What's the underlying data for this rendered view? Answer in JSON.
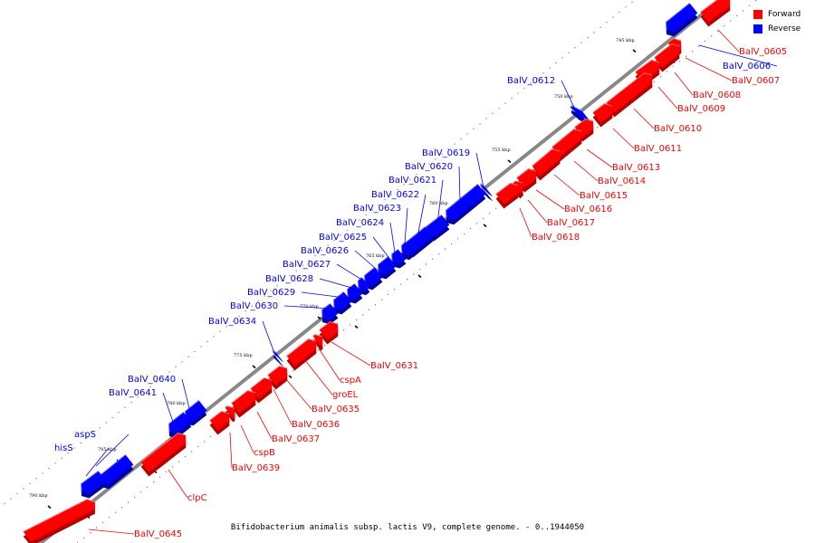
{
  "caption": "Bifidobacterium animalis subsp. lactis V9, complete genome. - 0..1944050",
  "legend": [
    {
      "label": "Forward",
      "color": "#ff0000"
    },
    {
      "label": "Reverse",
      "color": "#0000ff"
    }
  ],
  "colors": {
    "forward": "#ff0000",
    "reverse": "#0000ff",
    "backbone": "#888888"
  },
  "ticks": [
    "745 kbp",
    "750 kbp",
    "755 kbp",
    "760 kbp",
    "765 kbp",
    "770 kbp",
    "775 kbp",
    "780 kbp",
    "785 kbp",
    "790 kbp"
  ],
  "genes": [
    {
      "name": "BalV_0605",
      "strand": "forward"
    },
    {
      "name": "BalV_0606",
      "strand": "reverse"
    },
    {
      "name": "BalV_0607",
      "strand": "forward"
    },
    {
      "name": "BalV_0608",
      "strand": "forward"
    },
    {
      "name": "BalV_0609",
      "strand": "forward"
    },
    {
      "name": "BalV_0610",
      "strand": "forward"
    },
    {
      "name": "BalV_0611",
      "strand": "forward"
    },
    {
      "name": "BalV_0612",
      "strand": "reverse"
    },
    {
      "name": "BalV_0613",
      "strand": "forward"
    },
    {
      "name": "BalV_0614",
      "strand": "forward"
    },
    {
      "name": "BalV_0615",
      "strand": "forward"
    },
    {
      "name": "BalV_0616",
      "strand": "forward"
    },
    {
      "name": "BalV_0617",
      "strand": "forward"
    },
    {
      "name": "BalV_0618",
      "strand": "forward"
    },
    {
      "name": "BalV_0619",
      "strand": "reverse"
    },
    {
      "name": "BalV_0620",
      "strand": "reverse"
    },
    {
      "name": "BalV_0621",
      "strand": "reverse"
    },
    {
      "name": "BalV_0622",
      "strand": "reverse"
    },
    {
      "name": "BalV_0623",
      "strand": "reverse"
    },
    {
      "name": "BalV_0624",
      "strand": "reverse"
    },
    {
      "name": "BalV_0625",
      "strand": "reverse"
    },
    {
      "name": "BalV_0626",
      "strand": "reverse"
    },
    {
      "name": "BalV_0627",
      "strand": "reverse"
    },
    {
      "name": "BalV_0628",
      "strand": "reverse"
    },
    {
      "name": "BalV_0629",
      "strand": "reverse"
    },
    {
      "name": "BalV_0630",
      "strand": "reverse"
    },
    {
      "name": "BalV_0631",
      "strand": "forward"
    },
    {
      "name": "cspA",
      "strand": "forward"
    },
    {
      "name": "groEL",
      "strand": "forward"
    },
    {
      "name": "BalV_0634",
      "strand": "reverse"
    },
    {
      "name": "BalV_0635",
      "strand": "forward"
    },
    {
      "name": "BalV_0636",
      "strand": "forward"
    },
    {
      "name": "BalV_0637",
      "strand": "forward"
    },
    {
      "name": "cspB",
      "strand": "forward"
    },
    {
      "name": "BalV_0639",
      "strand": "forward"
    },
    {
      "name": "BalV_0640",
      "strand": "reverse"
    },
    {
      "name": "BalV_0641",
      "strand": "reverse"
    },
    {
      "name": "aspS",
      "strand": "reverse"
    },
    {
      "name": "hisS",
      "strand": "reverse"
    },
    {
      "name": "clpC",
      "strand": "forward"
    },
    {
      "name": "BalV_0645",
      "strand": "forward"
    }
  ]
}
